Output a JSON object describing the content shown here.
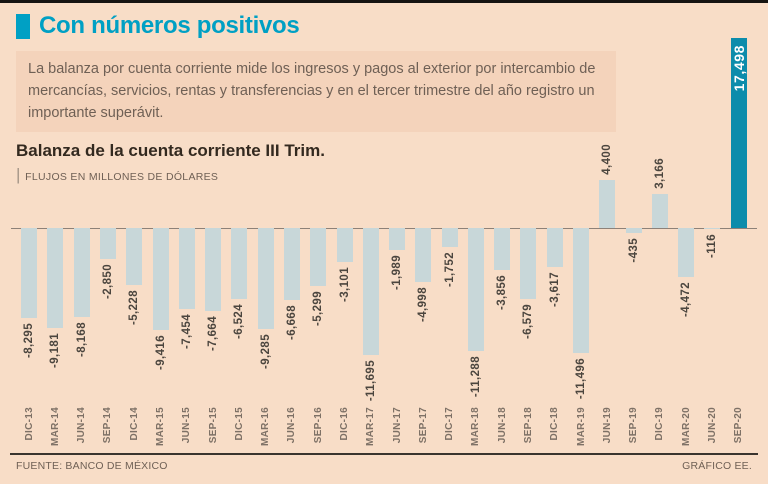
{
  "header": {
    "title": "Con números positivos"
  },
  "intro": {
    "text": "La balanza por cuenta corriente mide los ingresos y pagos al exterior por intercambio de mercancías, servicios, rentas y transferencias y en el tercer trimestre del año registro un importante superávit."
  },
  "chart_header": {
    "title": "Balanza de la cuenta corriente III Trim.",
    "separator": "|",
    "units": "FLUJOS EN MILLONES DE DÓLARES"
  },
  "footer": {
    "source": "FUENTE: BANCO DE MÉXICO",
    "credit": "GRÁFICO EE."
  },
  "colors": {
    "background": "#f8ddc7",
    "intro_panel": "#f4d3bb",
    "accent": "#00a0c4",
    "bar": "#c8d7d9",
    "bar_highlight": "#0c8cab",
    "text_dark": "#33291f",
    "text_muted": "#6f6055",
    "value_label": "#4b453e",
    "category_label": "#7e7166"
  },
  "chart_data": {
    "type": "bar",
    "title": "Balanza de la cuenta corriente III Trim.",
    "units_label": "FLUJOS EN MILLONES DE DÓLARES",
    "categories": [
      "DIC-13",
      "MAR-14",
      "JUN-14",
      "SEP-14",
      "DIC-14",
      "MAR-15",
      "JUN-15",
      "SEP-15",
      "DIC-15",
      "MAR-16",
      "JUN-16",
      "SEP-16",
      "DIC-16",
      "MAR-17",
      "JUN-17",
      "SEP-17",
      "DIC-17",
      "MAR-18",
      "JUN-18",
      "SEP-18",
      "DIC-18",
      "MAR-19",
      "JUN-19",
      "SEP-19",
      "DIC-19",
      "MAR-20",
      "JUN-20",
      "SEP-20"
    ],
    "values": [
      -8295,
      -9181,
      -8168,
      -2850,
      -5228,
      -9416,
      -7454,
      -7664,
      -6524,
      -9285,
      -6668,
      -5299,
      -3101,
      -11695,
      -1989,
      -4998,
      -1752,
      -11288,
      -3856,
      -6579,
      -3617,
      -11496,
      4400,
      -435,
      3166,
      -4472,
      -116,
      17498
    ],
    "highlight_index": 27,
    "highlight_category": "SEP-20",
    "ylim": [
      -12000,
      18000
    ],
    "baseline": 0,
    "grid": false,
    "legend": false,
    "source": "FUENTE: BANCO DE MÉXICO"
  }
}
